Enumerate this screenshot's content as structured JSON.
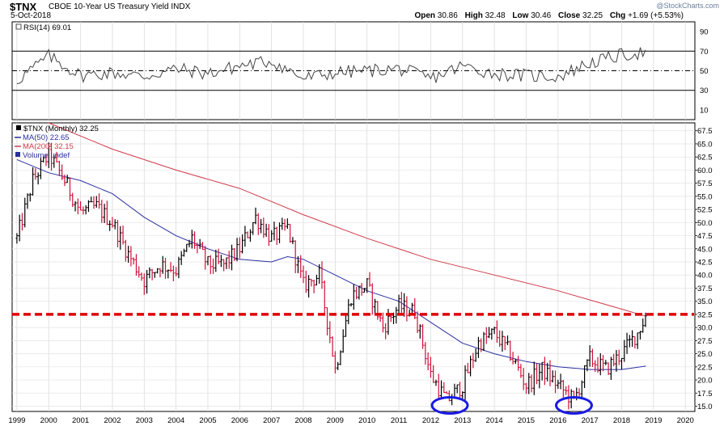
{
  "header": {
    "symbol": "$TNX",
    "description": "CBOE 10-Year US Treasury Yield",
    "exchange": "INDX",
    "date": "5-Oct-2018",
    "open_label": "Open",
    "open": "30.86",
    "high_label": "High",
    "high": "32.48",
    "low_label": "Low",
    "low": "30.46",
    "close_label": "Close",
    "close": "32.25",
    "chg_label": "Chg",
    "chg": "+1.69 (+5.53%)",
    "watermark": "@StockCharts.com"
  },
  "rsi_panel": {
    "legend": "RSI(14) 69.01",
    "levels": [
      30,
      50,
      70
    ],
    "ticks": [
      "90",
      "70",
      "50",
      "30",
      "10"
    ]
  },
  "price_panel": {
    "legend_price": "$TNX (Monthly) 32.25",
    "legend_ma50": "MA(50) 22.65",
    "legend_ma200": "MA(200) 32.15",
    "legend_volume": "Volume undef",
    "ticks": [
      "67.5",
      "65.0",
      "62.5",
      "60.0",
      "57.5",
      "55.0",
      "52.5",
      "50.0",
      "47.5",
      "45.0",
      "42.5",
      "40.0",
      "37.5",
      "35.0",
      "32.5",
      "30.0",
      "27.5",
      "25.0",
      "22.5",
      "20.0",
      "17.5",
      "15.0"
    ]
  },
  "x_axis": {
    "years": [
      "1999",
      "2000",
      "2001",
      "2002",
      "2003",
      "2004",
      "2005",
      "2006",
      "2007",
      "2008",
      "2009",
      "2010",
      "2011",
      "2012",
      "2013",
      "2014",
      "2015",
      "2016",
      "2017",
      "2018",
      "2019",
      "2020"
    ]
  },
  "annotations": {
    "resistance_level": 32.5,
    "circled_lows": [
      {
        "date": 2012.6,
        "value": 15.0
      },
      {
        "date": 2016.5,
        "value": 15.0
      }
    ]
  },
  "colors": {
    "price_up": "#000000",
    "price_down": "#d0103a",
    "ma50": "#2b2fa0",
    "ma200": "#d03a4a",
    "resistance": "#e00000",
    "circle": "#1a1ae6",
    "rsi_line": "#444444"
  },
  "chart_data": {
    "type": "line",
    "title": "$TNX CBOE 10-Year US Treasury Yield (Monthly)",
    "y_unit": "yield x10",
    "ylim": [
      14,
      69
    ],
    "xlim": [
      1998.85,
      2020.3
    ],
    "series": [
      {
        "name": "$TNX (Monthly)",
        "style": "ohlc-bars",
        "x": [
          1999.0,
          1999.5,
          2000.0,
          2000.5,
          2001.0,
          2001.5,
          2002.0,
          2002.5,
          2003.0,
          2003.5,
          2004.0,
          2004.5,
          2005.0,
          2005.5,
          2006.0,
          2006.5,
          2007.0,
          2007.5,
          2008.0,
          2008.5,
          2008.9,
          2009.0,
          2009.5,
          2010.0,
          2010.5,
          2011.0,
          2011.5,
          2012.0,
          2012.5,
          2013.0,
          2013.5,
          2014.0,
          2014.5,
          2015.0,
          2015.5,
          2016.0,
          2016.5,
          2017.0,
          2017.5,
          2018.0,
          2018.5,
          2018.76
        ],
        "values": [
          47,
          58,
          63,
          58,
          52,
          53,
          50,
          44,
          39,
          42,
          41,
          47,
          42,
          42,
          45,
          51,
          47,
          49,
          38,
          40,
          26,
          22,
          36,
          38,
          30,
          34,
          33,
          21,
          16,
          19,
          27,
          29,
          25,
          19,
          22,
          19,
          16,
          24,
          22,
          25,
          29,
          32.25
        ]
      },
      {
        "name": "MA(50)",
        "x": [
          1999.0,
          2000.0,
          2001.0,
          2002.0,
          2003.0,
          2004.0,
          2005.0,
          2006.0,
          2007.0,
          2007.5,
          2008.0,
          2009.0,
          2010.0,
          2011.0,
          2012.0,
          2013.0,
          2014.0,
          2015.0,
          2016.0,
          2017.0,
          2018.0,
          2018.76
        ],
        "values": [
          62,
          59.5,
          58,
          55.5,
          51,
          47.5,
          45,
          43,
          42.5,
          43.5,
          43,
          40,
          37,
          35,
          31,
          27,
          25,
          23.5,
          22.5,
          22,
          22,
          22.65
        ]
      },
      {
        "name": "MA(200)",
        "x": [
          2000.0,
          2002.0,
          2004.0,
          2006.0,
          2008.0,
          2010.0,
          2012.0,
          2014.0,
          2016.0,
          2018.0,
          2018.76
        ],
        "values": [
          69,
          64,
          60,
          56.5,
          51.5,
          47,
          43,
          40,
          37,
          33.5,
          32.15
        ]
      }
    ],
    "rsi": {
      "name": "RSI(14)",
      "x": [
        1999.0,
        2000.0,
        2001.0,
        2002.0,
        2003.0,
        2004.0,
        2005.0,
        2006.0,
        2007.0,
        2008.0,
        2009.0,
        2010.0,
        2011.0,
        2012.0,
        2013.0,
        2014.0,
        2015.0,
        2016.0,
        2017.0,
        2018.0,
        2018.76
      ],
      "values": [
        40,
        65,
        45,
        48,
        44,
        52,
        47,
        55,
        60,
        42,
        48,
        50,
        52,
        42,
        55,
        47,
        45,
        44,
        58,
        66,
        69
      ]
    }
  }
}
